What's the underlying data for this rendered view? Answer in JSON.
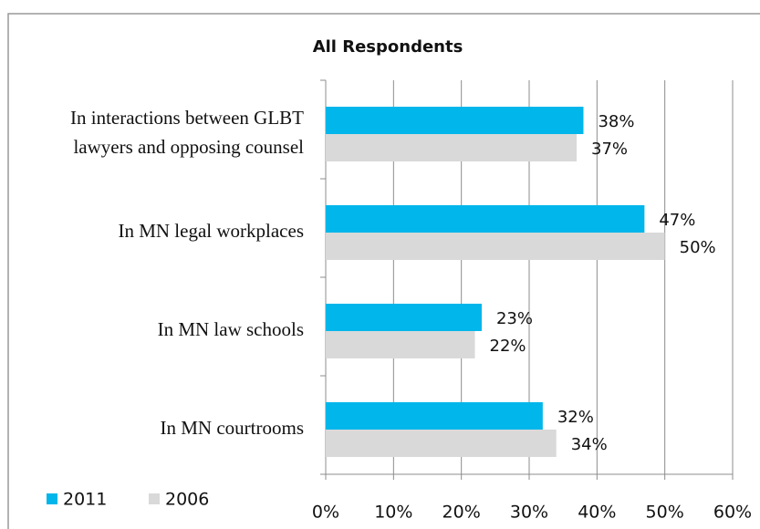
{
  "chart_data": {
    "type": "hbar",
    "title": "All Respondents",
    "categories": [
      "In interactions between GLBT lawyers and opposing counsel",
      "In MN legal workplaces",
      "In MN law schools",
      "In MN courtrooms"
    ],
    "series": [
      {
        "name": "2011",
        "color": "#00b6ea",
        "values": [
          38,
          47,
          23,
          32
        ],
        "value_labels": [
          "38%",
          "47%",
          "23%",
          "32%"
        ]
      },
      {
        "name": "2006",
        "color": "#d9d9d9",
        "values": [
          37,
          50,
          22,
          34
        ],
        "value_labels": [
          "37%",
          "50%",
          "22%",
          "34%"
        ]
      }
    ],
    "xlim": [
      0,
      60
    ],
    "xticks": [
      {
        "value": 0,
        "label": "0%"
      },
      {
        "value": 10,
        "label": "10%"
      },
      {
        "value": 20,
        "label": "20%"
      },
      {
        "value": 30,
        "label": "30%"
      },
      {
        "value": 40,
        "label": "40%"
      },
      {
        "value": 50,
        "label": "50%"
      },
      {
        "value": 60,
        "label": "60%"
      }
    ],
    "grid": true,
    "legend": "bottom-left"
  }
}
